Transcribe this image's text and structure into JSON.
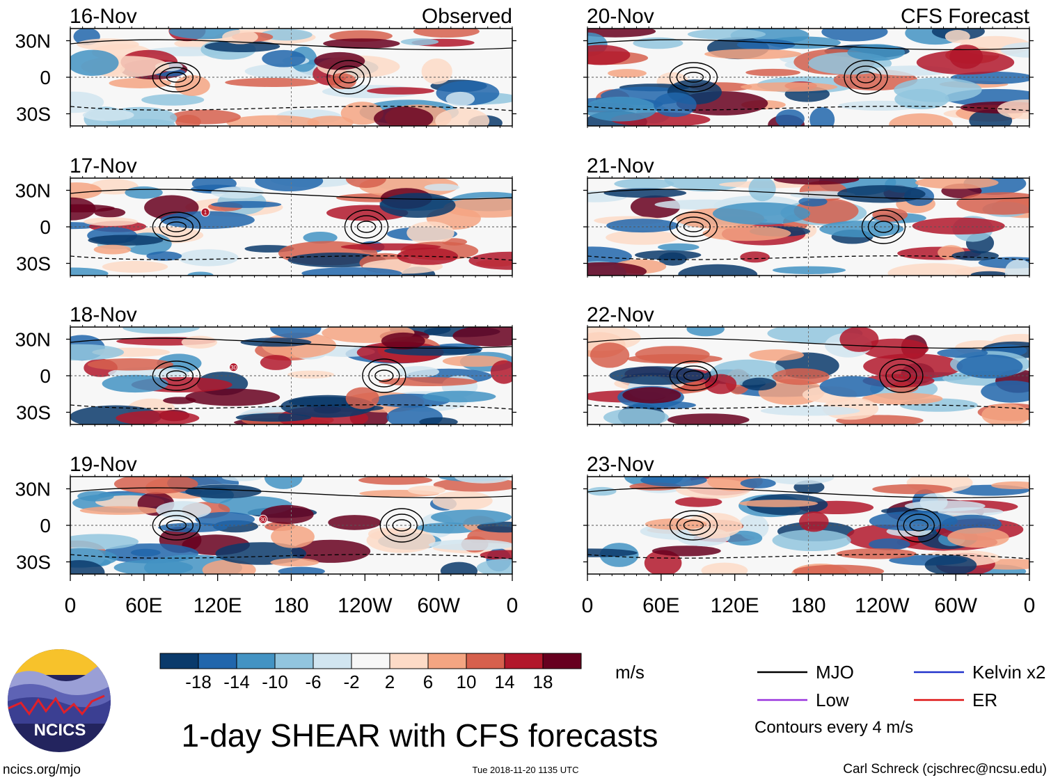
{
  "chart_data": {
    "type": "heatmap",
    "title": "1-day SHEAR with CFS forecasts",
    "variable": "vertical wind shear anomaly",
    "units": "m/s",
    "observed_label": "Observed",
    "forecast_label": "CFS Forecast",
    "lat_ticks": [
      "30N",
      "0",
      "30S"
    ],
    "lon_ticks": [
      "0",
      "60E",
      "120E",
      "180",
      "120W",
      "60W",
      "0"
    ],
    "lon_range": [
      0,
      360
    ],
    "lat_range": [
      -40,
      40
    ],
    "panels": [
      {
        "date": "16-Nov",
        "kind": "observed",
        "storms": []
      },
      {
        "date": "17-Nov",
        "kind": "observed",
        "storms": [
          {
            "label": "1",
            "lon": 110,
            "lat": 12
          }
        ]
      },
      {
        "date": "18-Nov",
        "kind": "observed",
        "storms": [
          {
            "label": "30",
            "lon": 133,
            "lat": 7
          }
        ]
      },
      {
        "date": "19-Nov",
        "kind": "observed",
        "storms": [
          {
            "label": "30",
            "lon": 157,
            "lat": 5
          }
        ]
      },
      {
        "date": "20-Nov",
        "kind": "forecast",
        "storms": []
      },
      {
        "date": "21-Nov",
        "kind": "forecast",
        "storms": []
      },
      {
        "date": "22-Nov",
        "kind": "forecast",
        "storms": []
      },
      {
        "date": "23-Nov",
        "kind": "forecast",
        "storms": []
      }
    ],
    "colorbar": {
      "labels": [
        "-18",
        "-14",
        "-10",
        "-6",
        "-2",
        "2",
        "6",
        "10",
        "14",
        "18"
      ],
      "colors": [
        "#0a3a6b",
        "#2166ac",
        "#4393c3",
        "#92c5de",
        "#d1e5f0",
        "#f7f7f7",
        "#fddbc7",
        "#f4a582",
        "#d6604d",
        "#b2182b",
        "#67001f"
      ]
    },
    "legend": [
      {
        "name": "MJO",
        "color": "#000000"
      },
      {
        "name": "Kelvin x2",
        "color": "#2233cc"
      },
      {
        "name": "Low",
        "color": "#9933dd"
      },
      {
        "name": "ER",
        "color": "#dd1111"
      }
    ],
    "contour_note": "Contours every 4 m/s"
  },
  "footer": {
    "site": "ncics.org/mjo",
    "timestamp": "Tue 2018-11-20 1135 UTC",
    "author": "Carl Schreck (cjschrec@ncsu.edu)",
    "logo_text": "NCICS"
  }
}
